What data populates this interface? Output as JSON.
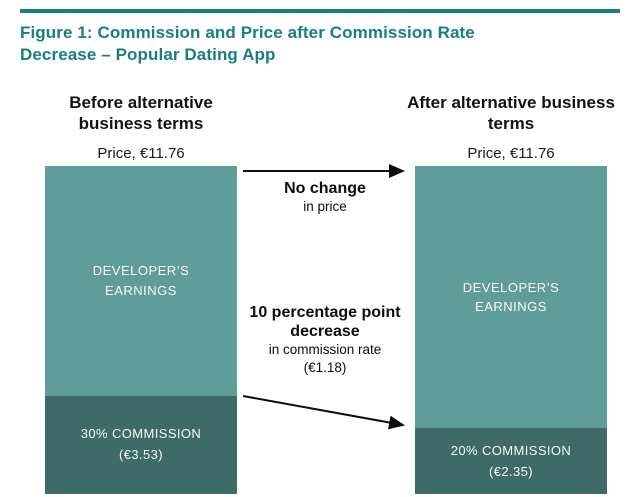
{
  "figure": {
    "title": "Figure 1: Commission and Price after Commission Rate Decrease – Popular Dating App",
    "accent_color": "#17807d"
  },
  "before": {
    "header": "Before alternative business terms",
    "price_label": "Price, €11.76",
    "earnings_label": "DEVELOPER’S EARNINGS",
    "commission_label": "30% COMMISSION",
    "commission_value": "(€3.53)",
    "commission_pct": 30
  },
  "after": {
    "header": "After alternative business terms",
    "price_label": "Price, €11.76",
    "earnings_label": "DEVELOPER’S EARNINGS",
    "commission_label": "20% COMMISSION",
    "commission_value": "(€2.35)",
    "commission_pct": 20
  },
  "annotations": {
    "no_change_title": "No change",
    "no_change_sub": "in price",
    "decrease_title": "10 percentage point decrease",
    "decrease_sub": "in commission rate",
    "decrease_value": "(€1.18)"
  },
  "colors": {
    "earnings": "#5e9d99",
    "commission": "#3e6b69"
  },
  "chart_data": {
    "type": "bar",
    "stacked": true,
    "title": "Figure 1: Commission and Price after Commission Rate Decrease – Popular Dating App",
    "categories": [
      "Before alternative business terms",
      "After alternative business terms"
    ],
    "series": [
      {
        "name": "Developer’s earnings (€)",
        "values": [
          8.23,
          9.41
        ]
      },
      {
        "name": "Commission (€)",
        "values": [
          3.53,
          2.35
        ]
      }
    ],
    "bar_totals_eur": [
      11.76,
      11.76
    ],
    "commission_rates_pct": [
      30,
      20
    ],
    "xlabel": "",
    "ylabel": "Price, €",
    "ylim": [
      0,
      11.76
    ],
    "grid": false,
    "legend_position": "none",
    "annotations": [
      "No change in price",
      "10 percentage point decrease in commission rate (€1.18)"
    ]
  }
}
